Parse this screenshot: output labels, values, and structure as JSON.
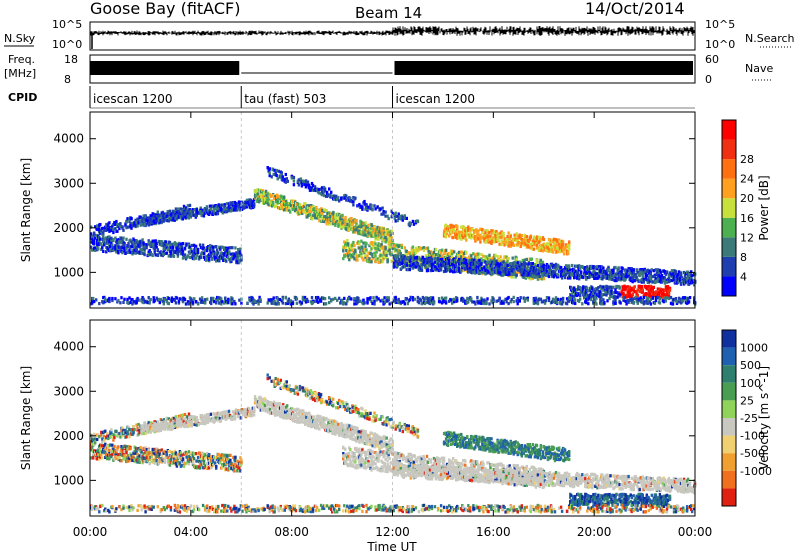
{
  "header": {
    "station": "Goose Bay (fitACF)",
    "beam": "Beam 14",
    "date": "14/Oct/2014"
  },
  "chart_data": [
    {
      "type": "line",
      "name": "nsky-nsearch-panel",
      "left_label": "N.Sky",
      "right_label": "N.Search",
      "left_ticks": [
        "10^5",
        "10^0"
      ],
      "right_ticks": [
        "10^5",
        "10^0"
      ]
    },
    {
      "type": "line",
      "name": "freq-nave-panel",
      "left_label_line1": "Freq.",
      "left_label_line2": "[MHz]",
      "right_label": "Nave",
      "left_ticks": [
        18,
        8
      ],
      "right_ticks": [
        60,
        0
      ]
    },
    {
      "type": "table",
      "name": "cpid-panel",
      "label": "CPID",
      "segments": [
        {
          "start": 0,
          "end": 6,
          "label": "icescan 1200"
        },
        {
          "start": 6,
          "end": 12,
          "label": "tau (fast) 503"
        },
        {
          "start": 12,
          "end": 24,
          "label": "icescan 1200"
        }
      ]
    },
    {
      "type": "heatmap",
      "name": "power-panel",
      "ylabel": "Slant Range [km]",
      "yticks": [
        1000,
        2000,
        3000,
        4000
      ],
      "ylim": [
        200,
        4600
      ],
      "colorbar_label": "Power [dB]",
      "colorbar_ticks": [
        4,
        8,
        12,
        16,
        20,
        24,
        28
      ],
      "colors": [
        "#0000ff",
        "#1f3fb0",
        "#3b7a78",
        "#4caf50",
        "#c8e03c",
        "#ffa020",
        "#ff7010",
        "#f03010",
        "#ff0000"
      ]
    },
    {
      "type": "heatmap",
      "name": "velocity-panel",
      "ylabel": "Slant Range [km]",
      "yticks": [
        1000,
        2000,
        3000,
        4000
      ],
      "ylim": [
        200,
        4600
      ],
      "colorbar_label": "Velocity [m s^-1]",
      "colorbar_ticks": [
        1000,
        500,
        100,
        25,
        -25,
        -100,
        -500,
        -1000
      ],
      "colors": [
        "#1030a0",
        "#2060b0",
        "#2f7f6f",
        "#4a9e52",
        "#8fd35a",
        "#c8c8c0",
        "#f0d070",
        "#f0a030",
        "#f07020",
        "#e02010"
      ]
    }
  ],
  "time_axis": {
    "label": "Time UT",
    "ticks": [
      "00:00",
      "04:00",
      "08:00",
      "12:00",
      "16:00",
      "20:00",
      "00:00"
    ],
    "xlim": [
      0,
      24
    ]
  }
}
